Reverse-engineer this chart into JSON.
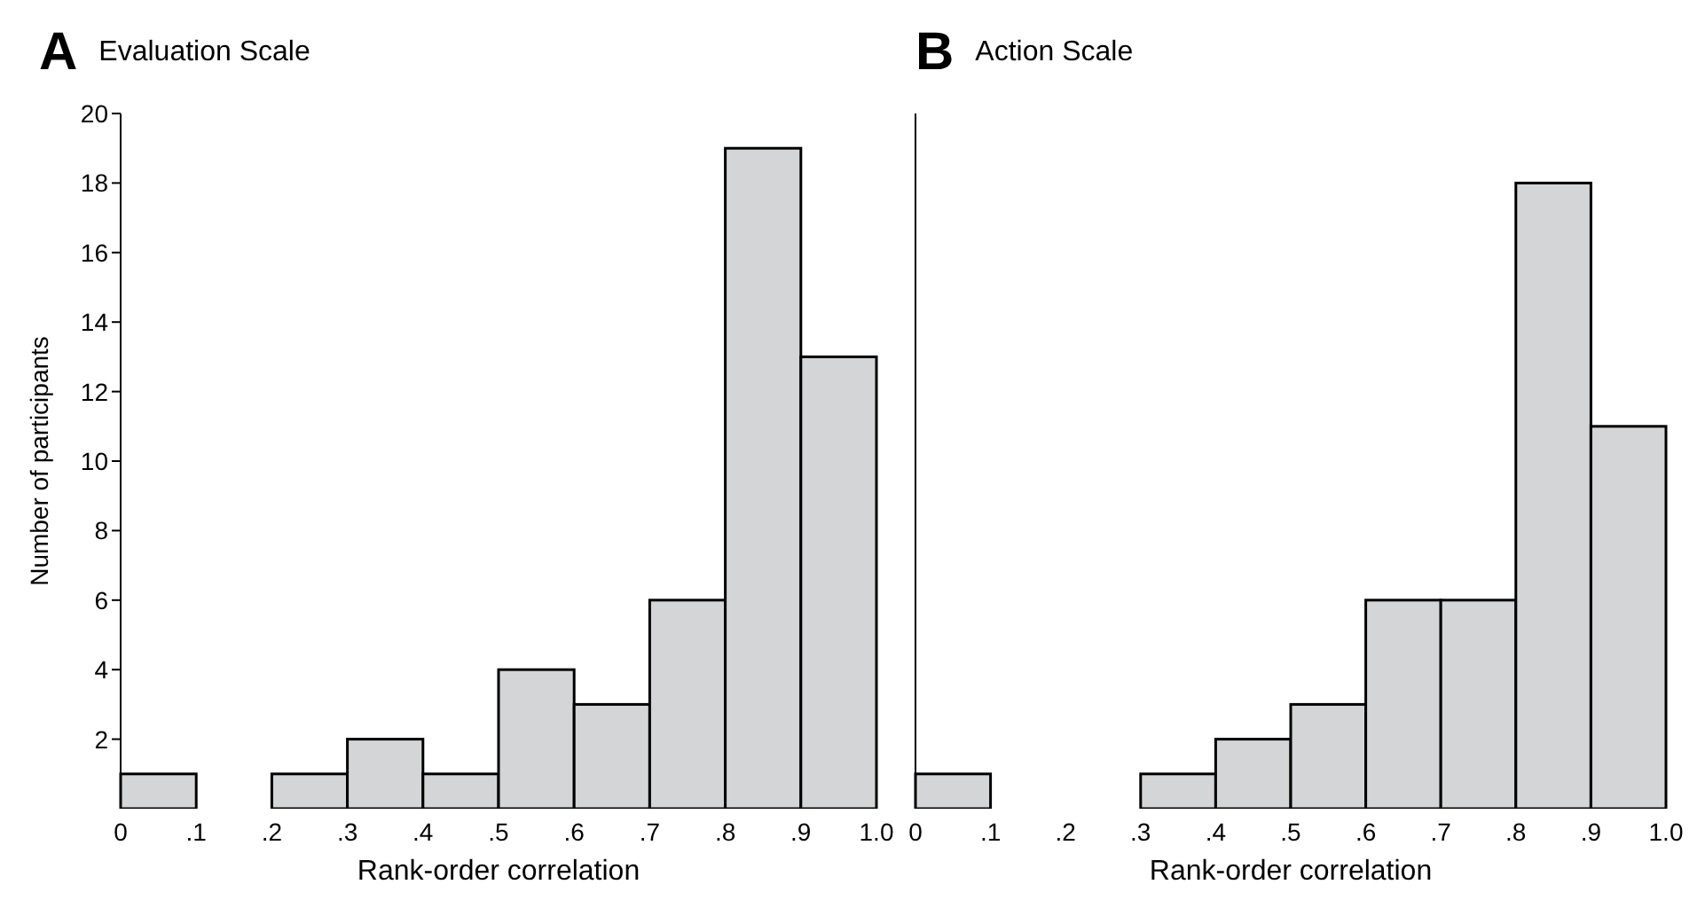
{
  "chart_data": [
    {
      "type": "histogram",
      "annotations": [
        "A"
      ],
      "title": "Evaluation Scale",
      "xlabel": "Rank-order correlation",
      "ylabel": "Number of participants",
      "bins": [
        0,
        0.1,
        0.2,
        0.3,
        0.4,
        0.5,
        0.6,
        0.7,
        0.8,
        0.9,
        1.0
      ],
      "values": [
        1,
        0,
        1,
        2,
        1,
        4,
        3,
        6,
        19,
        13
      ],
      "color": "#d3d5d6",
      "xlim": [
        0,
        1
      ],
      "xticks": [
        0,
        {
          "value": 0.1,
          "label": ".1"
        },
        {
          "value": 0.2,
          "label": ".2"
        },
        {
          "value": 0.3,
          "label": ".3"
        },
        {
          "value": 0.4,
          "label": ".4"
        },
        {
          "value": 0.5,
          "label": ".5"
        },
        {
          "value": 0.6,
          "label": ".6"
        },
        {
          "value": 0.7,
          "label": ".7"
        },
        {
          "value": 0.8,
          "label": ".8"
        },
        {
          "value": 0.9,
          "label": ".9"
        },
        {
          "value": 1,
          "label": "1.0"
        }
      ],
      "ylim": [
        0,
        20
      ],
      "yticks": [
        2,
        4,
        6,
        8,
        10,
        12,
        14,
        16,
        18,
        20
      ]
    },
    {
      "type": "histogram",
      "annotations": [
        "B"
      ],
      "title": "Action Scale",
      "xlabel": "Rank-order correlation",
      "bins": [
        0,
        0.1,
        0.2,
        0.3,
        0.4,
        0.5,
        0.6,
        0.7,
        0.8,
        0.9,
        1.0
      ],
      "values": [
        1,
        0,
        0,
        1,
        2,
        3,
        6,
        6,
        18,
        11
      ],
      "color": "#d3d5d6",
      "xlim": [
        0,
        1
      ],
      "xticks": [
        0,
        {
          "value": 0.1,
          "label": ".1"
        },
        {
          "value": 0.2,
          "label": ".2"
        },
        {
          "value": 0.3,
          "label": ".3"
        },
        {
          "value": 0.4,
          "label": ".4"
        },
        {
          "value": 0.5,
          "label": ".5"
        },
        {
          "value": 0.6,
          "label": ".6"
        },
        {
          "value": 0.7,
          "label": ".7"
        },
        {
          "value": 0.8,
          "label": ".8"
        },
        {
          "value": 0.9,
          "label": ".9"
        },
        {
          "value": 1,
          "label": "1.0"
        }
      ],
      "ylim": [
        0,
        20
      ],
      "yticks": [
        2,
        4,
        6,
        8,
        10,
        12,
        14,
        16,
        18,
        20
      ],
      "tick_labels": "x"
    }
  ]
}
